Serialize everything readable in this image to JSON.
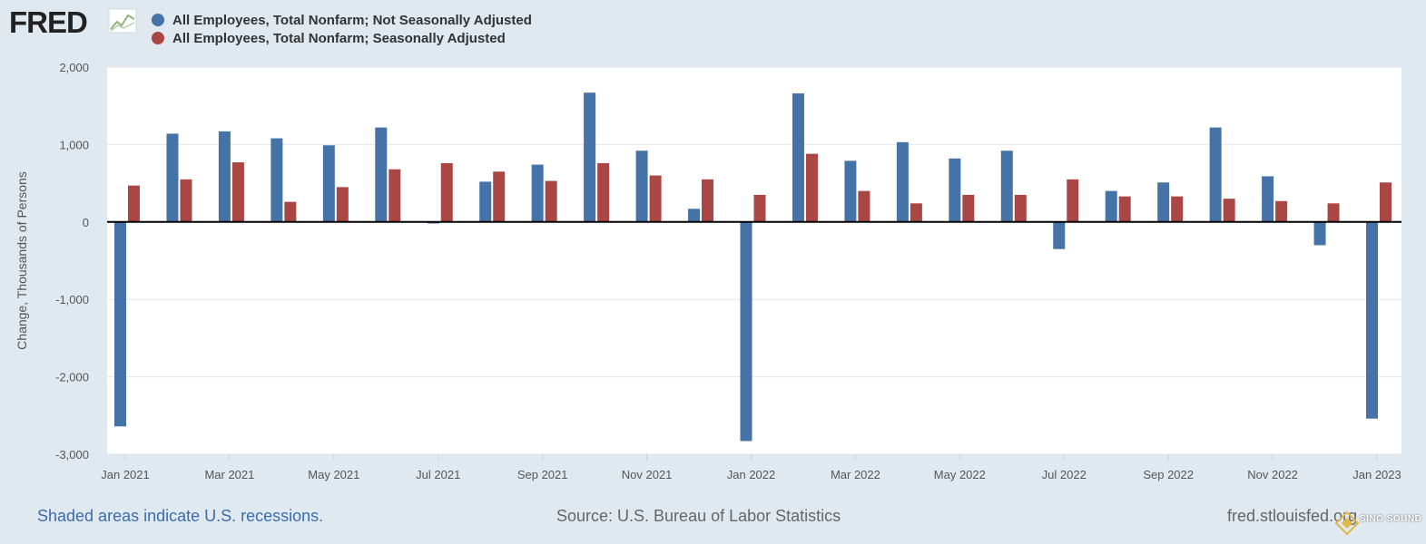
{
  "logo": {
    "text": "FRED"
  },
  "footer": {
    "recession_note": "Shaded areas indicate U.S. recessions.",
    "source": "Source: U.S. Bureau of Labor Statistics",
    "site": "fred.stlouisfed.org"
  },
  "watermark": {
    "text": "SINO SOUND"
  },
  "chart_data": {
    "type": "bar",
    "title": "",
    "xlabel": "",
    "ylabel": "Change, Thousands of Persons",
    "ylim": [
      -3000,
      2000
    ],
    "yticks": [
      2000,
      1000,
      0,
      -1000,
      -2000,
      -3000
    ],
    "ytick_labels": [
      "2,000",
      "1,000",
      "0",
      "-1,000",
      "-2,000",
      "-3,000"
    ],
    "grid": true,
    "legend": "top-left",
    "categories": [
      "Jan 2021",
      "Feb 2021",
      "Mar 2021",
      "Apr 2021",
      "May 2021",
      "Jun 2021",
      "Jul 2021",
      "Aug 2021",
      "Sep 2021",
      "Oct 2021",
      "Nov 2021",
      "Dec 2021",
      "Jan 2022",
      "Feb 2022",
      "Mar 2022",
      "Apr 2022",
      "May 2022",
      "Jun 2022",
      "Jul 2022",
      "Aug 2022",
      "Sep 2022",
      "Oct 2022",
      "Nov 2022",
      "Dec 2022",
      "Jan 2023"
    ],
    "tick_labels": [
      {
        "index": 0,
        "label": "Jan 2021"
      },
      {
        "index": 2,
        "label": "Mar 2021"
      },
      {
        "index": 4,
        "label": "May 2021"
      },
      {
        "index": 6,
        "label": "Jul 2021"
      },
      {
        "index": 8,
        "label": "Sep 2021"
      },
      {
        "index": 10,
        "label": "Nov 2021"
      },
      {
        "index": 12,
        "label": "Jan 2022"
      },
      {
        "index": 14,
        "label": "Mar 2022"
      },
      {
        "index": 16,
        "label": "May 2022"
      },
      {
        "index": 18,
        "label": "Jul 2022"
      },
      {
        "index": 20,
        "label": "Sep 2022"
      },
      {
        "index": 22,
        "label": "Nov 2022"
      },
      {
        "index": 24,
        "label": "Jan 2023"
      }
    ],
    "series": [
      {
        "name": "All Employees, Total Nonfarm; Not Seasonally Adjusted",
        "color": "#4572a7",
        "values": [
          -2640,
          1140,
          1170,
          1080,
          990,
          1220,
          -20,
          520,
          740,
          1670,
          920,
          170,
          -2830,
          1660,
          790,
          1030,
          820,
          920,
          -350,
          400,
          510,
          1220,
          590,
          -300,
          -2540
        ]
      },
      {
        "name": "All Employees, Total Nonfarm; Seasonally Adjusted",
        "color": "#aa4643",
        "values": [
          470,
          550,
          770,
          260,
          450,
          680,
          760,
          650,
          530,
          760,
          600,
          550,
          350,
          880,
          400,
          240,
          350,
          350,
          550,
          330,
          330,
          300,
          270,
          240,
          510
        ]
      }
    ]
  }
}
